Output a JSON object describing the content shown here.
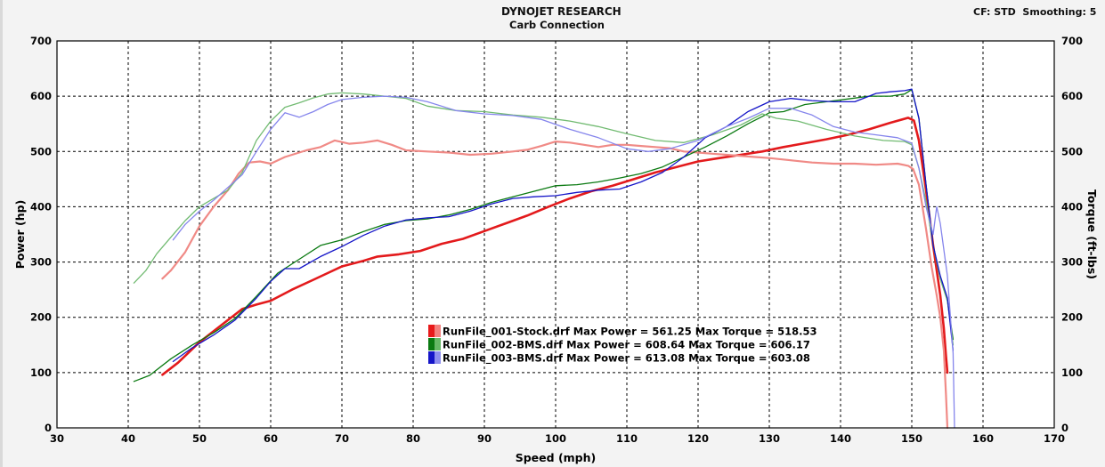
{
  "header": {
    "title": "DYNOJET RESEARCH",
    "subtitle": "Carb Connection",
    "settings": "CF: STD  Smoothing: 5"
  },
  "chart_data": {
    "type": "line",
    "xlabel": "Speed (mph)",
    "ylabel_left": "Power (hp)",
    "ylabel_right": "Torque (ft-lbs)",
    "xlim": [
      30,
      170
    ],
    "ylim": [
      0,
      700
    ],
    "x_ticks": [
      30,
      40,
      50,
      60,
      70,
      80,
      90,
      100,
      110,
      120,
      130,
      140,
      150,
      160,
      170
    ],
    "y_ticks": [
      0,
      100,
      200,
      300,
      400,
      500,
      600,
      700
    ],
    "grid": true,
    "legend_position": "lower-center",
    "legend": [
      {
        "label": "RunFile_001-Stock.drf Max Power = 561.25 Max Torque = 518.53",
        "colors": [
          "#e8191a",
          "#f3817e"
        ]
      },
      {
        "label": "RunFile_002-BMS.drf Max Power = 608.64 Max Torque = 606.17",
        "colors": [
          "#0b7a12",
          "#66b866"
        ]
      },
      {
        "label": "RunFile_003-BMS.drf Max Power = 613.08 Max Torque = 603.08",
        "colors": [
          "#1515c8",
          "#8f8fee"
        ]
      }
    ],
    "series": [
      {
        "name": "RunFile_001-Stock.drf Power",
        "color": "#e31a1c",
        "width": 2.6,
        "points": [
          [
            44.8,
            96
          ],
          [
            47,
            118
          ],
          [
            50,
            155
          ],
          [
            53,
            185
          ],
          [
            56,
            215
          ],
          [
            58,
            223
          ],
          [
            60,
            230
          ],
          [
            63,
            250
          ],
          [
            66,
            268
          ],
          [
            68,
            280
          ],
          [
            70,
            292
          ],
          [
            73,
            302
          ],
          [
            75,
            310
          ],
          [
            78,
            314
          ],
          [
            81,
            320
          ],
          [
            84,
            333
          ],
          [
            87,
            342
          ],
          [
            90,
            356
          ],
          [
            93,
            370
          ],
          [
            96,
            384
          ],
          [
            99,
            400
          ],
          [
            102,
            415
          ],
          [
            105,
            428
          ],
          [
            108,
            438
          ],
          [
            111,
            450
          ],
          [
            114,
            462
          ],
          [
            117,
            472
          ],
          [
            120,
            482
          ],
          [
            123,
            488
          ],
          [
            126,
            494
          ],
          [
            129,
            500
          ],
          [
            132,
            508
          ],
          [
            135,
            515
          ],
          [
            138,
            522
          ],
          [
            141,
            530
          ],
          [
            144,
            540
          ],
          [
            147,
            552
          ],
          [
            149.5,
            561
          ],
          [
            150.3,
            556
          ],
          [
            151,
            520
          ],
          [
            152,
            430
          ],
          [
            153,
            330
          ],
          [
            154,
            240
          ],
          [
            154.5,
            180
          ],
          [
            154.8,
            130
          ],
          [
            155,
            100
          ]
        ]
      },
      {
        "name": "RunFile_001-Stock.drf Torque",
        "color": "#f08a86",
        "width": 2.2,
        "points": [
          [
            44.8,
            270
          ],
          [
            46,
            285
          ],
          [
            48,
            318
          ],
          [
            50,
            365
          ],
          [
            52,
            400
          ],
          [
            54,
            430
          ],
          [
            55.5,
            460
          ],
          [
            57,
            480
          ],
          [
            58.5,
            482
          ],
          [
            60,
            478
          ],
          [
            62,
            490
          ],
          [
            65,
            502
          ],
          [
            67,
            508
          ],
          [
            69,
            520
          ],
          [
            71,
            514
          ],
          [
            73,
            516
          ],
          [
            75,
            520
          ],
          [
            77,
            512
          ],
          [
            79,
            502
          ],
          [
            82,
            500
          ],
          [
            85,
            498
          ],
          [
            88,
            494
          ],
          [
            91,
            496
          ],
          [
            94,
            500
          ],
          [
            96,
            503
          ],
          [
            98,
            510
          ],
          [
            100,
            518
          ],
          [
            102,
            516
          ],
          [
            104,
            512
          ],
          [
            106,
            508
          ],
          [
            108,
            512
          ],
          [
            110,
            512
          ],
          [
            112,
            510
          ],
          [
            114,
            508
          ],
          [
            116,
            506
          ],
          [
            118,
            500
          ],
          [
            120,
            498
          ],
          [
            122,
            496
          ],
          [
            124,
            494
          ],
          [
            126,
            492
          ],
          [
            128,
            490
          ],
          [
            130,
            488
          ],
          [
            133,
            484
          ],
          [
            136,
            480
          ],
          [
            139,
            478
          ],
          [
            142,
            478
          ],
          [
            145,
            476
          ],
          [
            148,
            478
          ],
          [
            149.5,
            474
          ],
          [
            150.2,
            468
          ],
          [
            151,
            440
          ],
          [
            152,
            360
          ],
          [
            152.8,
            290
          ],
          [
            153.5,
            240
          ],
          [
            154,
            200
          ],
          [
            154.5,
            140
          ],
          [
            154.8,
            60
          ],
          [
            155,
            0
          ]
        ]
      },
      {
        "name": "RunFile_002-BMS.drf Power",
        "color": "#0b7a12",
        "width": 1.3,
        "points": [
          [
            40.8,
            84
          ],
          [
            43,
            95
          ],
          [
            46,
            125
          ],
          [
            49,
            150
          ],
          [
            52,
            172
          ],
          [
            55,
            198
          ],
          [
            58,
            238
          ],
          [
            61,
            280
          ],
          [
            64,
            305
          ],
          [
            67,
            330
          ],
          [
            70,
            340
          ],
          [
            73,
            355
          ],
          [
            76,
            368
          ],
          [
            79,
            375
          ],
          [
            82,
            378
          ],
          [
            85,
            385
          ],
          [
            88,
            395
          ],
          [
            91,
            408
          ],
          [
            94,
            418
          ],
          [
            97,
            428
          ],
          [
            100,
            438
          ],
          [
            103,
            440
          ],
          [
            106,
            445
          ],
          [
            109,
            452
          ],
          [
            112,
            460
          ],
          [
            115,
            472
          ],
          [
            118,
            490
          ],
          [
            121,
            508
          ],
          [
            124,
            528
          ],
          [
            127,
            550
          ],
          [
            129,
            563
          ],
          [
            130,
            570
          ],
          [
            132,
            572
          ],
          [
            135,
            585
          ],
          [
            138,
            590
          ],
          [
            141,
            595
          ],
          [
            144,
            600
          ],
          [
            147,
            600
          ],
          [
            149,
            604
          ],
          [
            150,
            612
          ],
          [
            151,
            560
          ],
          [
            152,
            440
          ],
          [
            153,
            330
          ],
          [
            154,
            270
          ],
          [
            155,
            230
          ],
          [
            155.8,
            160
          ]
        ]
      },
      {
        "name": "RunFile_002-BMS.drf Torque",
        "color": "#72bb72",
        "width": 1.3,
        "points": [
          [
            40.8,
            262
          ],
          [
            42.5,
            285
          ],
          [
            44,
            315
          ],
          [
            46,
            345
          ],
          [
            48,
            375
          ],
          [
            50,
            400
          ],
          [
            52,
            415
          ],
          [
            54,
            430
          ],
          [
            56,
            462
          ],
          [
            58,
            520
          ],
          [
            60,
            555
          ],
          [
            62,
            580
          ],
          [
            64,
            588
          ],
          [
            66,
            597
          ],
          [
            68,
            604
          ],
          [
            70,
            606
          ],
          [
            73,
            604
          ],
          [
            76,
            600
          ],
          [
            79,
            596
          ],
          [
            82,
            582
          ],
          [
            86,
            574
          ],
          [
            90,
            572
          ],
          [
            94,
            566
          ],
          [
            98,
            562
          ],
          [
            102,
            555
          ],
          [
            106,
            545
          ],
          [
            110,
            532
          ],
          [
            114,
            520
          ],
          [
            118,
            516
          ],
          [
            122,
            530
          ],
          [
            126,
            548
          ],
          [
            129,
            568
          ],
          [
            131,
            560
          ],
          [
            134,
            555
          ],
          [
            138,
            540
          ],
          [
            142,
            528
          ],
          [
            146,
            520
          ],
          [
            149,
            518
          ],
          [
            150,
            512
          ],
          [
            151,
            470
          ],
          [
            152,
            410
          ],
          [
            153,
            330
          ],
          [
            154,
            270
          ],
          [
            155,
            230
          ],
          [
            155.8,
            150
          ]
        ]
      },
      {
        "name": "RunFile_003-BMS.drf Power",
        "color": "#1515c8",
        "width": 1.3,
        "points": [
          [
            46.3,
            120
          ],
          [
            49,
            145
          ],
          [
            52,
            168
          ],
          [
            55,
            195
          ],
          [
            58,
            235
          ],
          [
            60,
            265
          ],
          [
            62,
            288
          ],
          [
            64,
            288
          ],
          [
            67,
            310
          ],
          [
            70,
            328
          ],
          [
            73,
            348
          ],
          [
            76,
            365
          ],
          [
            79,
            376
          ],
          [
            82,
            380
          ],
          [
            85,
            382
          ],
          [
            88,
            392
          ],
          [
            91,
            405
          ],
          [
            94,
            415
          ],
          [
            97,
            418
          ],
          [
            100,
            420
          ],
          [
            103,
            426
          ],
          [
            106,
            430
          ],
          [
            109,
            432
          ],
          [
            112,
            445
          ],
          [
            115,
            462
          ],
          [
            118,
            490
          ],
          [
            121,
            525
          ],
          [
            124,
            545
          ],
          [
            127,
            572
          ],
          [
            130,
            590
          ],
          [
            133,
            596
          ],
          [
            136,
            592
          ],
          [
            139,
            590
          ],
          [
            142,
            590
          ],
          [
            145,
            605
          ],
          [
            147,
            608
          ],
          [
            149,
            610
          ],
          [
            150,
            613
          ],
          [
            151,
            560
          ],
          [
            152,
            440
          ],
          [
            153,
            330
          ],
          [
            154,
            275
          ],
          [
            155,
            235
          ],
          [
            155.8,
            140
          ]
        ]
      },
      {
        "name": "RunFile_003-BMS.drf Torque",
        "color": "#8585ec",
        "width": 1.3,
        "points": [
          [
            46.3,
            340
          ],
          [
            48,
            368
          ],
          [
            50,
            392
          ],
          [
            52,
            412
          ],
          [
            54,
            435
          ],
          [
            56,
            458
          ],
          [
            58,
            500
          ],
          [
            60,
            540
          ],
          [
            62,
            570
          ],
          [
            64,
            562
          ],
          [
            66,
            572
          ],
          [
            68,
            585
          ],
          [
            70,
            594
          ],
          [
            73,
            598
          ],
          [
            76,
            600
          ],
          [
            79,
            598
          ],
          [
            82,
            590
          ],
          [
            86,
            574
          ],
          [
            90,
            568
          ],
          [
            94,
            565
          ],
          [
            98,
            558
          ],
          [
            102,
            540
          ],
          [
            106,
            525
          ],
          [
            110,
            505
          ],
          [
            113,
            500
          ],
          [
            116,
            505
          ],
          [
            120,
            520
          ],
          [
            124,
            545
          ],
          [
            127,
            560
          ],
          [
            130,
            578
          ],
          [
            133,
            578
          ],
          [
            136,
            566
          ],
          [
            139,
            545
          ],
          [
            142,
            535
          ],
          [
            145,
            530
          ],
          [
            148,
            525
          ],
          [
            150,
            515
          ],
          [
            151,
            470
          ],
          [
            152,
            400
          ],
          [
            153,
            350
          ],
          [
            153.5,
            400
          ],
          [
            154,
            370
          ],
          [
            155,
            275
          ],
          [
            155.8,
            135
          ],
          [
            156,
            0
          ]
        ]
      }
    ]
  }
}
